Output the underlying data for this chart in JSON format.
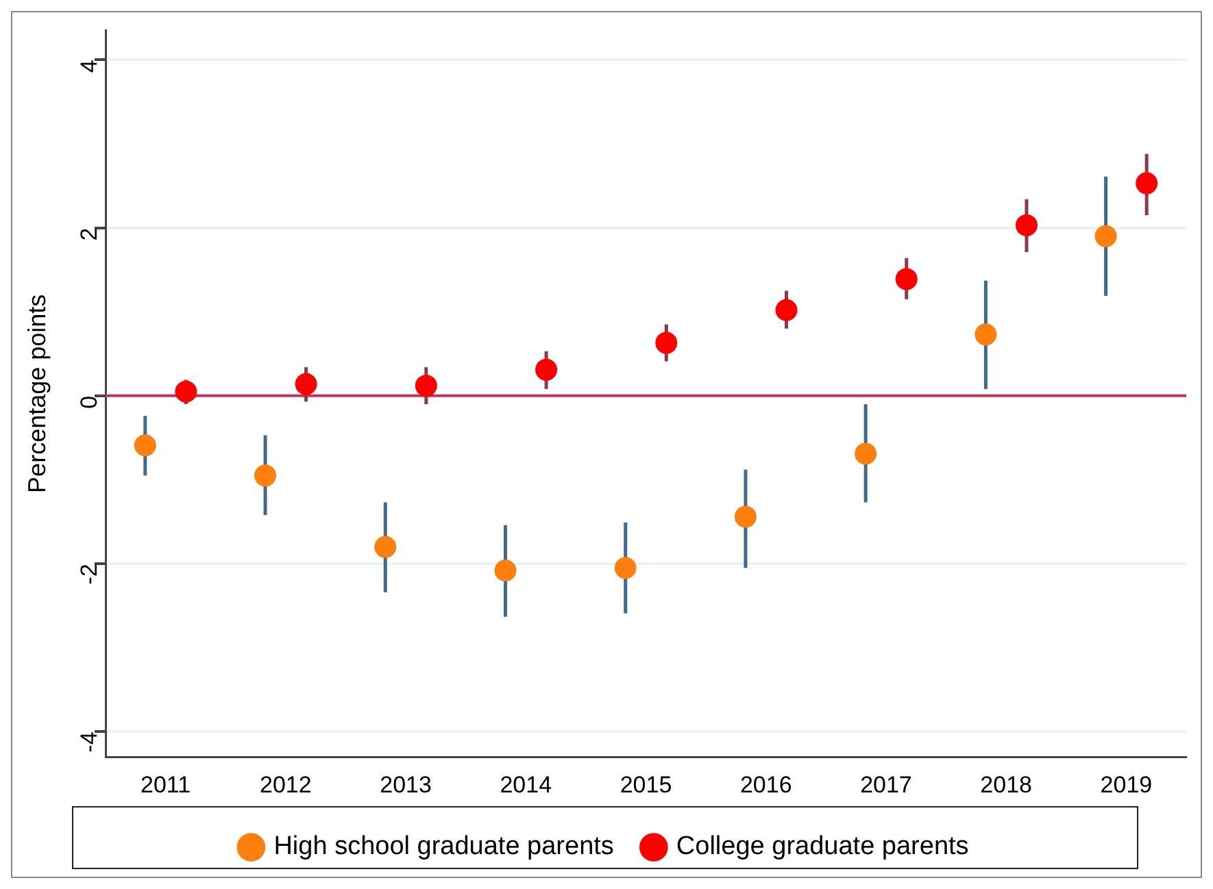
{
  "chart_data": {
    "type": "scatter",
    "ylabel": "Percentage points",
    "categories": [
      "2011",
      "2012",
      "2013",
      "2014",
      "2015",
      "2016",
      "2017",
      "2018",
      "2019"
    ],
    "series": [
      {
        "name": "High school graduate parents",
        "color": "#ff7f0e",
        "values": [
          -0.59,
          -0.95,
          -1.8,
          -2.08,
          -2.05,
          -1.44,
          -0.69,
          0.73,
          1.9
        ],
        "errors": [
          [
            -0.95,
            -0.24
          ],
          [
            -1.42,
            -0.47
          ],
          [
            -2.34,
            -1.27
          ],
          [
            -2.63,
            -1.54
          ],
          [
            -2.59,
            -1.51
          ],
          [
            -2.05,
            -0.88
          ],
          [
            -1.27,
            -0.1
          ],
          [
            0.08,
            1.37
          ],
          [
            1.19,
            2.61
          ]
        ]
      },
      {
        "name": "College graduate parents",
        "color": "#ff0000",
        "values": [
          0.05,
          0.14,
          0.12,
          0.31,
          0.63,
          1.02,
          1.39,
          2.03,
          2.53
        ],
        "errors": [
          [
            -0.1,
            0.19
          ],
          [
            -0.07,
            0.34
          ],
          [
            -0.1,
            0.34
          ],
          [
            0.08,
            0.53
          ],
          [
            0.41,
            0.85
          ],
          [
            0.8,
            1.25
          ],
          [
            1.15,
            1.64
          ],
          [
            1.71,
            2.34
          ],
          [
            2.15,
            2.88
          ]
        ]
      }
    ],
    "ylim": [
      -4.3,
      4.35
    ],
    "yticks": [
      -4,
      -2,
      0,
      2,
      4
    ],
    "grid": "y",
    "legend": "bottom",
    "marker": "circle",
    "ref_lines": [
      {
        "axis": "y",
        "value": 0,
        "color": "#c8325a"
      }
    ]
  }
}
